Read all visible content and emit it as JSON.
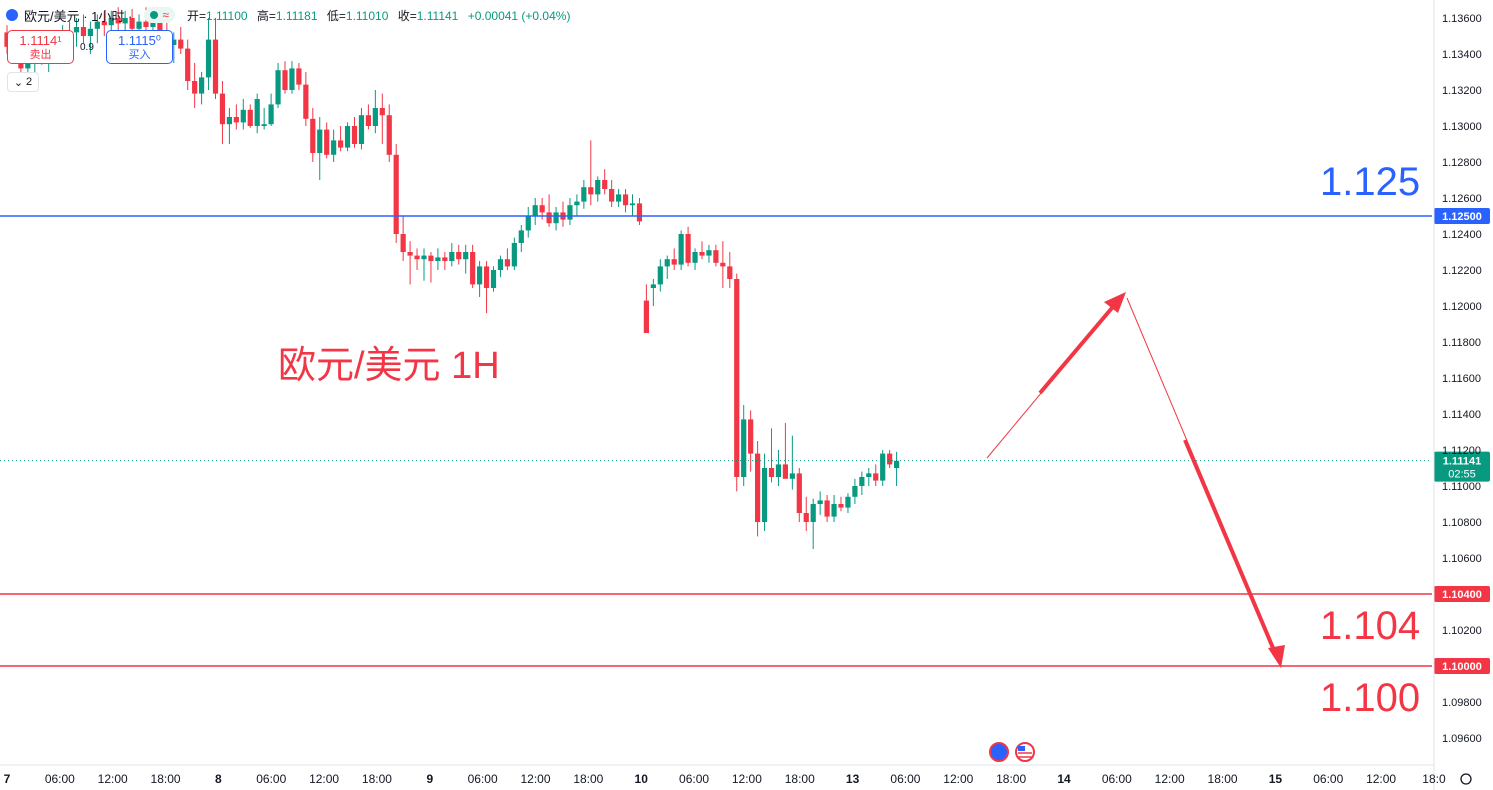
{
  "header": {
    "symbol": "欧元/美元 · 1小时 ·",
    "open_label": "开=",
    "open": "1.11100",
    "high_label": "高=",
    "high": "1.11181",
    "low_label": "低=",
    "low": "1.11010",
    "close_label": "收=",
    "close": "1.11141",
    "change": "+0.00041 (+0.04%)",
    "status_dot_color": "#089981"
  },
  "trade": {
    "sell_price": "1.1114¹",
    "sell_label": "卖出",
    "buy_price": "1.1115⁰",
    "buy_label": "买入",
    "spread": "0.9",
    "collapse_count": "2"
  },
  "chart_data": {
    "type": "candlestick",
    "title": "欧元/美元 1H",
    "y_ticks": [
      "1.13600",
      "1.13400",
      "1.13200",
      "1.13000",
      "1.12800",
      "1.12600",
      "1.12400",
      "1.12200",
      "1.12000",
      "1.11800",
      "1.11600",
      "1.11400",
      "1.11200",
      "1.11000",
      "1.10800",
      "1.10600",
      "1.10200",
      "1.09800",
      "1.09600"
    ],
    "ylim": [
      1.0955,
      1.1365
    ],
    "x_ticks": [
      "7",
      "06:00",
      "12:00",
      "18:00",
      "8",
      "06:00",
      "12:00",
      "18:00",
      "9",
      "06:00",
      "12:00",
      "18:00",
      "10",
      "06:00",
      "12:00",
      "18:00",
      "13",
      "06:00",
      "12:00",
      "18:00",
      "14",
      "06:00",
      "12:00",
      "18:00",
      "15",
      "06:00",
      "12:00",
      "18:0"
    ],
    "levels": [
      {
        "value": 1.125,
        "label": "1.12500",
        "big_label": "1.125",
        "color": "#2962ff"
      },
      {
        "value": 1.104,
        "label": "1.10400",
        "big_label": "1.104",
        "color": "#f23645"
      },
      {
        "value": 1.1,
        "label": "1.10000",
        "big_label": "1.100",
        "color": "#f23645"
      }
    ],
    "last_price": {
      "value": 1.11141,
      "label": "1.11141",
      "countdown": "02:55",
      "color": "#089981"
    },
    "colors": {
      "up": "#089981",
      "down": "#f23645"
    },
    "candles": [
      [
        1.1352,
        1.1356,
        1.134,
        1.1344
      ],
      [
        1.1344,
        1.135,
        1.1336,
        1.1338
      ],
      [
        1.1338,
        1.1342,
        1.1328,
        1.1332
      ],
      [
        1.1332,
        1.134,
        1.1326,
        1.1336
      ],
      [
        1.1336,
        1.1346,
        1.133,
        1.1342
      ],
      [
        1.1342,
        1.1348,
        1.1334,
        1.1338
      ],
      [
        1.1338,
        1.1344,
        1.133,
        1.134
      ],
      [
        1.134,
        1.135,
        1.1336,
        1.1346
      ],
      [
        1.1346,
        1.1356,
        1.134,
        1.135
      ],
      [
        1.135,
        1.1358,
        1.1342,
        1.1352
      ],
      [
        1.1352,
        1.136,
        1.1344,
        1.1355
      ],
      [
        1.1355,
        1.1362,
        1.1346,
        1.135
      ],
      [
        1.135,
        1.1358,
        1.134,
        1.1354
      ],
      [
        1.1354,
        1.1362,
        1.1346,
        1.1358
      ],
      [
        1.1358,
        1.1364,
        1.135,
        1.1356
      ],
      [
        1.1356,
        1.1364,
        1.1348,
        1.136
      ],
      [
        1.136,
        1.1366,
        1.1352,
        1.1357
      ],
      [
        1.1357,
        1.1364,
        1.135,
        1.136
      ],
      [
        1.136,
        1.1365,
        1.135,
        1.1354
      ],
      [
        1.1354,
        1.1362,
        1.1346,
        1.1358
      ],
      [
        1.1358,
        1.1366,
        1.135,
        1.1355
      ],
      [
        1.1355,
        1.1364,
        1.1344,
        1.136
      ],
      [
        1.136,
        1.1366,
        1.1348,
        1.1352
      ],
      [
        1.1352,
        1.136,
        1.1338,
        1.1345
      ],
      [
        1.1345,
        1.1352,
        1.1335,
        1.1348
      ],
      [
        1.1348,
        1.1355,
        1.134,
        1.1343
      ],
      [
        1.1343,
        1.1348,
        1.132,
        1.1325
      ],
      [
        1.1325,
        1.1335,
        1.131,
        1.1318
      ],
      [
        1.1318,
        1.133,
        1.1312,
        1.1327
      ],
      [
        1.1327,
        1.136,
        1.132,
        1.1348
      ],
      [
        1.1348,
        1.136,
        1.1315,
        1.1318
      ],
      [
        1.1318,
        1.1325,
        1.129,
        1.1301
      ],
      [
        1.1301,
        1.131,
        1.129,
        1.1305
      ],
      [
        1.1305,
        1.1312,
        1.1298,
        1.1302
      ],
      [
        1.1302,
        1.1315,
        1.1298,
        1.1309
      ],
      [
        1.1309,
        1.1312,
        1.1299,
        1.13
      ],
      [
        1.13,
        1.1318,
        1.1296,
        1.1315
      ],
      [
        1.13,
        1.131,
        1.1298,
        1.1301
      ],
      [
        1.1301,
        1.1318,
        1.13,
        1.1312
      ],
      [
        1.1312,
        1.1335,
        1.131,
        1.1331
      ],
      [
        1.1331,
        1.1336,
        1.1318,
        1.132
      ],
      [
        1.132,
        1.1336,
        1.1318,
        1.1332
      ],
      [
        1.1332,
        1.1335,
        1.132,
        1.1323
      ],
      [
        1.1323,
        1.133,
        1.13,
        1.1304
      ],
      [
        1.1304,
        1.131,
        1.128,
        1.1285
      ],
      [
        1.1285,
        1.1305,
        1.127,
        1.1298
      ],
      [
        1.1298,
        1.1302,
        1.1282,
        1.1284
      ],
      [
        1.1284,
        1.1298,
        1.128,
        1.1292
      ],
      [
        1.1292,
        1.13,
        1.1286,
        1.1288
      ],
      [
        1.1288,
        1.1302,
        1.1286,
        1.13
      ],
      [
        1.13,
        1.1305,
        1.1288,
        1.129
      ],
      [
        1.129,
        1.131,
        1.1287,
        1.1306
      ],
      [
        1.1306,
        1.1312,
        1.1298,
        1.13
      ],
      [
        1.13,
        1.132,
        1.1296,
        1.131
      ],
      [
        1.131,
        1.1318,
        1.129,
        1.1306
      ],
      [
        1.1306,
        1.1312,
        1.128,
        1.1284
      ],
      [
        1.1284,
        1.129,
        1.1235,
        1.124
      ],
      [
        1.124,
        1.125,
        1.1225,
        1.123
      ],
      [
        1.123,
        1.1236,
        1.1212,
        1.1228
      ],
      [
        1.1228,
        1.1232,
        1.122,
        1.1226
      ],
      [
        1.1226,
        1.1232,
        1.1214,
        1.1228
      ],
      [
        1.1228,
        1.123,
        1.1213,
        1.1225
      ],
      [
        1.1225,
        1.1232,
        1.122,
        1.1227
      ],
      [
        1.1227,
        1.123,
        1.122,
        1.1225
      ],
      [
        1.1225,
        1.1235,
        1.1222,
        1.123
      ],
      [
        1.123,
        1.1234,
        1.1223,
        1.1226
      ],
      [
        1.1226,
        1.1234,
        1.1218,
        1.123
      ],
      [
        1.123,
        1.1234,
        1.121,
        1.1212
      ],
      [
        1.1212,
        1.1225,
        1.1205,
        1.1222
      ],
      [
        1.1222,
        1.1225,
        1.1196,
        1.121
      ],
      [
        1.121,
        1.1222,
        1.1208,
        1.122
      ],
      [
        1.122,
        1.1228,
        1.1216,
        1.1226
      ],
      [
        1.1226,
        1.1232,
        1.122,
        1.1222
      ],
      [
        1.1222,
        1.1238,
        1.122,
        1.1235
      ],
      [
        1.1235,
        1.1245,
        1.123,
        1.1242
      ],
      [
        1.1242,
        1.1255,
        1.1238,
        1.125
      ],
      [
        1.125,
        1.126,
        1.1245,
        1.1256
      ],
      [
        1.1256,
        1.126,
        1.1248,
        1.1252
      ],
      [
        1.1252,
        1.1262,
        1.1244,
        1.1246
      ],
      [
        1.1246,
        1.1255,
        1.1242,
        1.1252
      ],
      [
        1.1252,
        1.1258,
        1.1244,
        1.1248
      ],
      [
        1.1248,
        1.126,
        1.1245,
        1.1256
      ],
      [
        1.1256,
        1.1262,
        1.125,
        1.1258
      ],
      [
        1.1258,
        1.127,
        1.1254,
        1.1266
      ],
      [
        1.1266,
        1.1292,
        1.1256,
        1.1262
      ],
      [
        1.1262,
        1.1272,
        1.1258,
        1.127
      ],
      [
        1.127,
        1.1276,
        1.1262,
        1.1265
      ],
      [
        1.1265,
        1.127,
        1.1255,
        1.1258
      ],
      [
        1.1258,
        1.1265,
        1.1255,
        1.1262
      ],
      [
        1.1262,
        1.1265,
        1.1252,
        1.1256
      ],
      [
        1.1256,
        1.1262,
        1.125,
        1.1257
      ],
      [
        1.1257,
        1.126,
        1.1245,
        1.1247
      ],
      [
        1.1203,
        1.1212,
        1.1185,
        1.1185
      ],
      [
        1.121,
        1.1215,
        1.12,
        1.1212
      ],
      [
        1.1212,
        1.1226,
        1.1208,
        1.1222
      ],
      [
        1.1222,
        1.1228,
        1.1215,
        1.1226
      ],
      [
        1.1226,
        1.1232,
        1.122,
        1.1223
      ],
      [
        1.1223,
        1.1242,
        1.122,
        1.124
      ],
      [
        1.124,
        1.1244,
        1.1222,
        1.1224
      ],
      [
        1.1224,
        1.1232,
        1.122,
        1.123
      ],
      [
        1.123,
        1.1236,
        1.1226,
        1.1228
      ],
      [
        1.1228,
        1.1234,
        1.1224,
        1.1231
      ],
      [
        1.1231,
        1.1234,
        1.1222,
        1.1224
      ],
      [
        1.1224,
        1.1236,
        1.121,
        1.1222
      ],
      [
        1.1222,
        1.123,
        1.121,
        1.1215
      ],
      [
        1.1215,
        1.1218,
        1.1097,
        1.1105
      ],
      [
        1.1105,
        1.1145,
        1.11,
        1.1137
      ],
      [
        1.1137,
        1.1142,
        1.1108,
        1.1118
      ],
      [
        1.1118,
        1.1125,
        1.1072,
        1.108
      ],
      [
        1.108,
        1.1118,
        1.1075,
        1.111
      ],
      [
        1.111,
        1.1132,
        1.1102,
        1.1105
      ],
      [
        1.1105,
        1.112,
        1.11,
        1.1112
      ],
      [
        1.1112,
        1.1135,
        1.1105,
        1.1104
      ],
      [
        1.1104,
        1.1128,
        1.1098,
        1.1107
      ],
      [
        1.1107,
        1.111,
        1.108,
        1.1085
      ],
      [
        1.1085,
        1.1094,
        1.1075,
        1.108
      ],
      [
        1.108,
        1.1093,
        1.1065,
        1.109
      ],
      [
        1.109,
        1.1097,
        1.1084,
        1.1092
      ],
      [
        1.1092,
        1.1095,
        1.108,
        1.1083
      ],
      [
        1.1083,
        1.1095,
        1.108,
        1.109
      ],
      [
        1.109,
        1.1094,
        1.1086,
        1.1088
      ],
      [
        1.1088,
        1.1096,
        1.1085,
        1.1094
      ],
      [
        1.1094,
        1.1104,
        1.109,
        1.11
      ],
      [
        1.11,
        1.1108,
        1.1095,
        1.1105
      ],
      [
        1.1105,
        1.111,
        1.11,
        1.1107
      ],
      [
        1.1107,
        1.1112,
        1.11,
        1.1103
      ],
      [
        1.1103,
        1.112,
        1.11,
        1.1118
      ],
      [
        1.1118,
        1.112,
        1.111,
        1.1112
      ],
      [
        1.111,
        1.1119,
        1.11,
        1.1114
      ]
    ]
  }
}
